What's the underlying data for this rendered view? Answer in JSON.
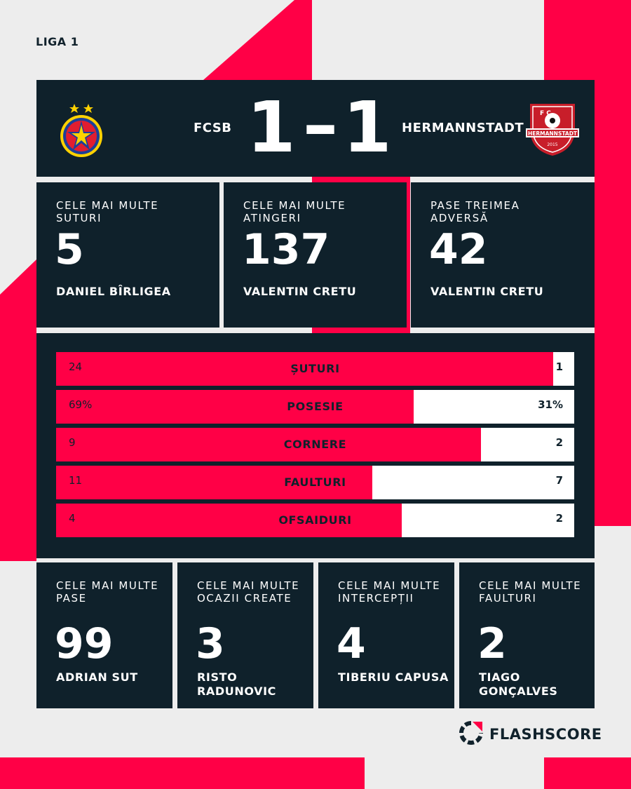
{
  "league": "LIGA 1",
  "match": {
    "home_team": "FCSB",
    "away_team": "HERMANNSTADT",
    "home_score": "1",
    "separator": "–",
    "away_score": "1",
    "away_crest_text": "HERMANNSTADT",
    "away_crest_year": "2015",
    "away_crest_letters": "F C"
  },
  "top_cards": [
    {
      "title": "CELE MAI MULTE SUTURI",
      "value": "5",
      "player": "DANIEL BÎRLIGEA"
    },
    {
      "title": "CELE MAI MULTE ATINGERI",
      "value": "137",
      "player": "VALENTIN CRETU"
    },
    {
      "title": "PASE TREIMEA ADVERSĂ",
      "value": "42",
      "player": "VALENTIN CRETU"
    }
  ],
  "stats": [
    {
      "label": "ȘUTURI",
      "home": "24",
      "away": "1",
      "home_share": 0.96
    },
    {
      "label": "POSESIE",
      "home": "69%",
      "away": "31%",
      "home_share": 0.69
    },
    {
      "label": "CORNERE",
      "home": "9",
      "away": "2",
      "home_share": 0.82
    },
    {
      "label": "FAULTURI",
      "home": "11",
      "away": "7",
      "home_share": 0.61
    },
    {
      "label": "OFSAIDURI",
      "home": "4",
      "away": "2",
      "home_share": 0.667
    }
  ],
  "bottom_cards": [
    {
      "title": "CELE MAI MULTE PASE",
      "value": "99",
      "player": "ADRIAN SUT"
    },
    {
      "title": "CELE MAI MULTE OCAZII CREATE",
      "value": "3",
      "player": "RISTO RADUNOVIC"
    },
    {
      "title": "CELE MAI MULTE INTERCEPȚII",
      "value": "4",
      "player": "TIBERIU CAPUSA"
    },
    {
      "title": "CELE MAI MULTE FAULTURI",
      "value": "2",
      "player": "TIAGO GONÇALVES"
    }
  ],
  "brand": "FLASHSCORE",
  "colors": {
    "accent": "#ff0046",
    "panel": "#0f212b",
    "background": "#ededed"
  }
}
